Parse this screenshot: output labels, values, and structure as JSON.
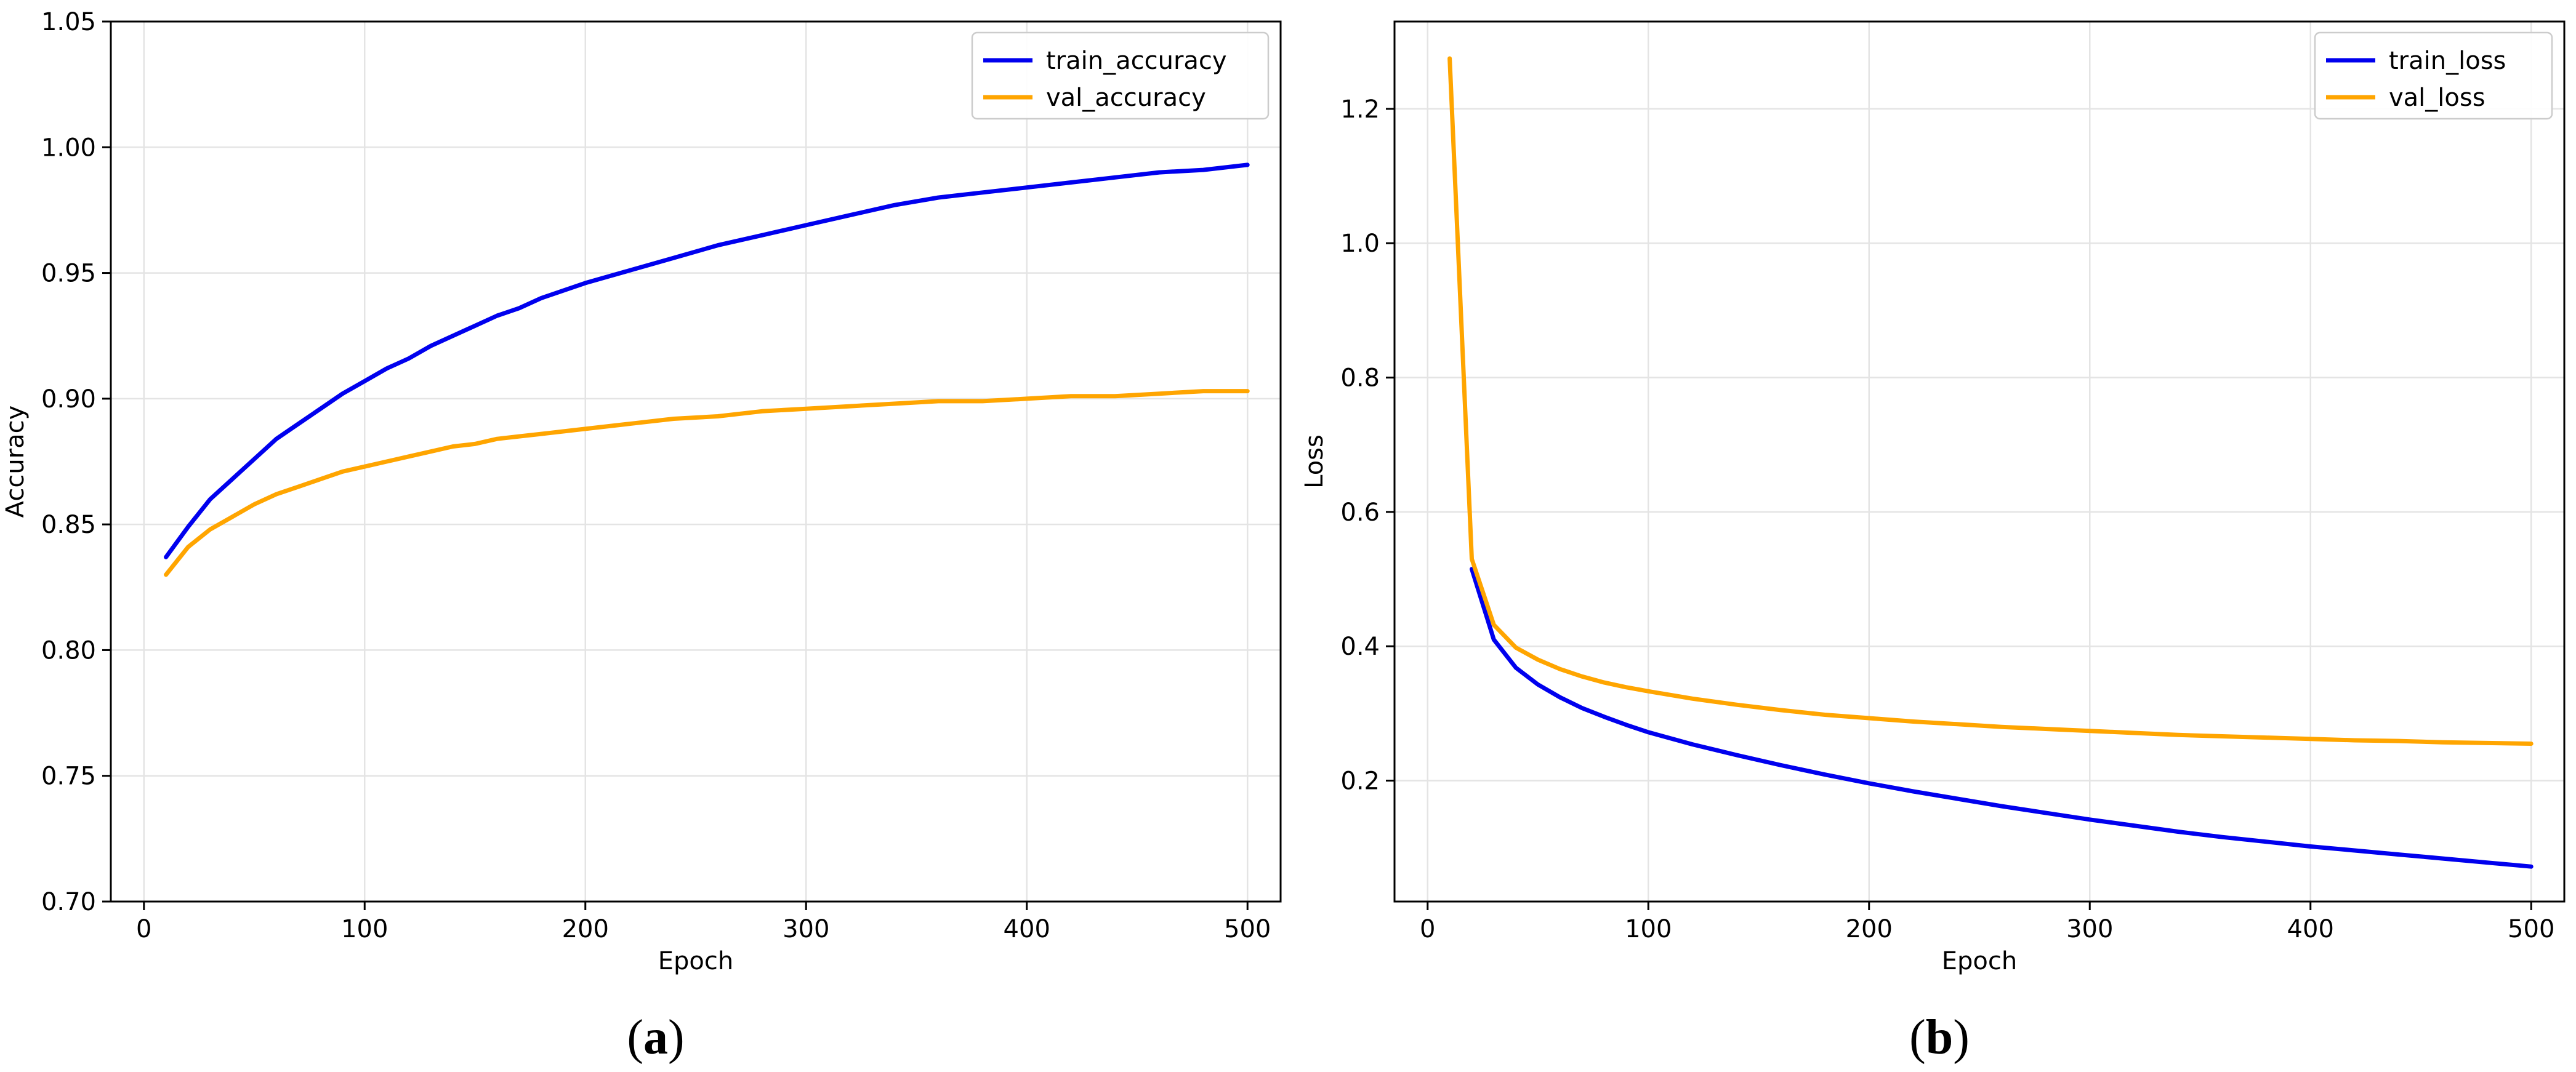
{
  "chart_data": [
    {
      "type": "line",
      "xlabel": "Epoch",
      "ylabel": "Accuracy",
      "xlim": [
        -15,
        515
      ],
      "ylim": [
        0.7,
        1.05
      ],
      "xticks": [
        0,
        100,
        200,
        300,
        400,
        500
      ],
      "xtick_labels": [
        "0",
        "100",
        "200",
        "300",
        "400",
        "500"
      ],
      "yticks": [
        0.7,
        0.75,
        0.8,
        0.85,
        0.9,
        0.95,
        1.0,
        1.05
      ],
      "ytick_labels": [
        "0.70",
        "0.75",
        "0.80",
        "0.85",
        "0.90",
        "0.95",
        "1.00",
        "1.05"
      ],
      "grid": true,
      "legend_position": "top-right",
      "panel_label": "a",
      "x": [
        10,
        20,
        30,
        40,
        50,
        60,
        70,
        80,
        90,
        100,
        110,
        120,
        130,
        140,
        150,
        160,
        170,
        180,
        190,
        200,
        220,
        240,
        260,
        280,
        300,
        320,
        340,
        360,
        380,
        400,
        420,
        440,
        460,
        480,
        500
      ],
      "series": [
        {
          "name": "train_accuracy",
          "color": "#0000ee",
          "values": [
            0.837,
            0.849,
            0.86,
            0.868,
            0.876,
            0.884,
            0.89,
            0.896,
            0.902,
            0.907,
            0.912,
            0.916,
            0.921,
            0.925,
            0.929,
            0.933,
            0.936,
            0.94,
            0.943,
            0.946,
            0.951,
            0.956,
            0.961,
            0.965,
            0.969,
            0.973,
            0.977,
            0.98,
            0.982,
            0.984,
            0.986,
            0.988,
            0.99,
            0.991,
            0.993
          ]
        },
        {
          "name": "val_accuracy",
          "color": "#ffa500",
          "values": [
            0.83,
            0.841,
            0.848,
            0.853,
            0.858,
            0.862,
            0.865,
            0.868,
            0.871,
            0.873,
            0.875,
            0.877,
            0.879,
            0.881,
            0.882,
            0.884,
            0.885,
            0.886,
            0.887,
            0.888,
            0.89,
            0.892,
            0.893,
            0.895,
            0.896,
            0.897,
            0.898,
            0.899,
            0.899,
            0.9,
            0.901,
            0.901,
            0.902,
            0.903,
            0.903
          ]
        }
      ]
    },
    {
      "type": "line",
      "xlabel": "Epoch",
      "ylabel": "Loss",
      "xlim": [
        -15,
        515
      ],
      "ylim": [
        0.02,
        1.33
      ],
      "xticks": [
        0,
        100,
        200,
        300,
        400,
        500
      ],
      "xtick_labels": [
        "0",
        "100",
        "200",
        "300",
        "400",
        "500"
      ],
      "yticks": [
        0.2,
        0.4,
        0.6,
        0.8,
        1.0,
        1.2
      ],
      "ytick_labels": [
        "0.2",
        "0.4",
        "0.6",
        "0.8",
        "1.0",
        "1.2"
      ],
      "grid": true,
      "legend_position": "top-right",
      "panel_label": "b",
      "x": [
        10,
        20,
        30,
        40,
        50,
        60,
        70,
        80,
        90,
        100,
        120,
        140,
        160,
        180,
        200,
        220,
        240,
        260,
        280,
        300,
        320,
        340,
        360,
        380,
        400,
        420,
        440,
        460,
        480,
        500
      ],
      "series": [
        {
          "name": "train_loss",
          "color": "#0000ee",
          "values": [
            null,
            0.515,
            0.41,
            0.368,
            0.343,
            0.324,
            0.308,
            0.295,
            0.283,
            0.272,
            0.254,
            0.238,
            0.223,
            0.209,
            0.196,
            0.184,
            0.173,
            0.162,
            0.152,
            0.142,
            0.133,
            0.124,
            0.116,
            0.109,
            0.102,
            0.096,
            0.09,
            0.084,
            0.078,
            0.072
          ]
        },
        {
          "name": "val_loss",
          "color": "#ffa500",
          "values": [
            1.275,
            0.53,
            0.432,
            0.398,
            0.38,
            0.366,
            0.355,
            0.346,
            0.339,
            0.333,
            0.322,
            0.313,
            0.305,
            0.298,
            0.293,
            0.288,
            0.284,
            0.28,
            0.277,
            0.274,
            0.271,
            0.268,
            0.266,
            0.264,
            0.262,
            0.26,
            0.259,
            0.257,
            0.256,
            0.255
          ]
        }
      ]
    }
  ]
}
